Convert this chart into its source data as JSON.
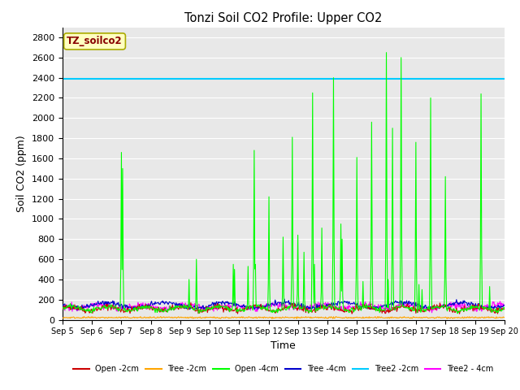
{
  "title": "Tonzi Soil CO2 Profile: Upper CO2",
  "xlabel": "Time",
  "ylabel": "Soil CO2 (ppm)",
  "ylim": [
    0,
    2900
  ],
  "xlim_days": [
    5,
    20
  ],
  "hline_value": 2390,
  "hline_color": "#00CCFF",
  "bg_color": "#E8E8E8",
  "legend_label": "TZ_soilco2",
  "legend_label_color": "#880000",
  "legend_box_facecolor": "#FFFFC0",
  "legend_box_edgecolor": "#AAAA00",
  "series": {
    "Open_2cm": {
      "color": "#CC0000",
      "label": "Open -2cm"
    },
    "Tree_2cm": {
      "color": "#FFA500",
      "label": "Tree -2cm"
    },
    "Open_4cm": {
      "color": "#00FF00",
      "label": "Open -4cm"
    },
    "Tree_4cm": {
      "color": "#0000CC",
      "label": "Tree -4cm"
    },
    "Tree2_2cm": {
      "color": "#00CCFF",
      "label": "Tree2 -2cm"
    },
    "Tree2_4cm": {
      "color": "#FF00FF",
      "label": "Tree2 - 4cm"
    }
  },
  "xtick_labels": [
    "Sep 5",
    "Sep 6",
    "Sep 7",
    "Sep 8",
    "Sep 9",
    "Sep 10",
    "Sep 11",
    "Sep 12",
    "Sep 13",
    "Sep 14",
    "Sep 15",
    "Sep 16",
    "Sep 17",
    "Sep 18",
    "Sep 19",
    "Sep 20"
  ],
  "ytick_step": 200,
  "spike_times": [
    7.0,
    7.05,
    9.3,
    9.55,
    10.8,
    10.85,
    11.3,
    11.5,
    11.55,
    12.0,
    12.5,
    12.8,
    13.0,
    13.2,
    13.5,
    13.55,
    13.8,
    14.2,
    14.45,
    14.5,
    15.0,
    15.2,
    15.5,
    16.0,
    16.05,
    16.2,
    16.5,
    17.0,
    17.1,
    17.2,
    17.5,
    18.0,
    19.2,
    19.5
  ],
  "spike_heights": [
    1660,
    1500,
    400,
    600,
    550,
    500,
    530,
    1680,
    550,
    1220,
    820,
    1810,
    840,
    670,
    2250,
    550,
    910,
    2400,
    950,
    800,
    1610,
    380,
    1960,
    2650,
    400,
    1900,
    2600,
    1760,
    350,
    300,
    2200,
    1420,
    2240,
    330
  ]
}
